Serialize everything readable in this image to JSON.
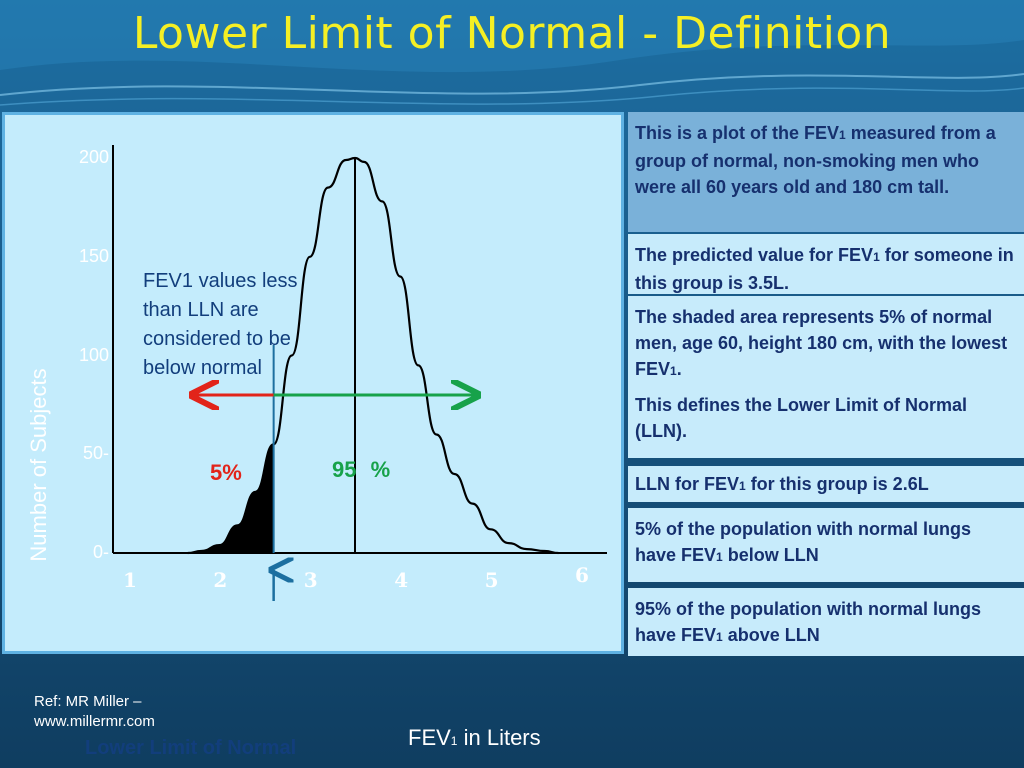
{
  "slide": {
    "title": "Lower Limit of Normal - Definition",
    "reference_line1": "Ref: MR Miller –",
    "reference_line2": "www.millermr.com"
  },
  "annotations": {
    "note": "FEV1 values less than LLN are considered to be below normal",
    "pct_left": "5%",
    "pct_right": "95  %",
    "lln_label": "Lower Limit of Normal",
    "xlabel_main": "FEV",
    "xlabel_sub": "1",
    "xlabel_rest": " in Liters",
    "ylabel": "Number of Subjects"
  },
  "sidebar": {
    "box1_a": "This is a plot of the FEV",
    "box1_sub": "1",
    "box1_b": " measured from a group of normal, non-smoking men who were all 60 years old and 180 cm tall.",
    "box2_a": "The predicted value for FEV",
    "box2_sub": "1",
    "box2_b": " for someone in this group is 3.5L.",
    "box3_a": "The shaded area represents 5% of normal men, age 60, height 180 cm, with the lowest FEV",
    "box3_sub": "1",
    "box3_b": ".",
    "box3_p2": "This defines the Lower Limit of Normal (LLN).",
    "box4_a": "LLN for FEV",
    "box4_sub": "1",
    "box4_b": " for this group is 2.6L",
    "box5_a": "5% of the population with normal lungs have FEV",
    "box5_sub": "1",
    "box5_b": " below LLN",
    "box6_a": "95% of the population with normal lungs have FEV",
    "box6_sub": "1",
    "box6_b": " above LLN"
  },
  "colors": {
    "title": "#f5ef24",
    "panel": "#c4ecfc",
    "red_arrow": "#e2241a",
    "green_arrow": "#17a24a",
    "lln_line": "#1c6fa0"
  },
  "chart_data": {
    "type": "area",
    "xlabel": "FEV1 in Liters",
    "ylabel": "Number of Subjects",
    "xlim": [
      1,
      6
    ],
    "ylim": [
      0,
      200
    ],
    "x_ticks": [
      "1",
      "2",
      "3",
      "4",
      "5",
      "6"
    ],
    "y_ticks": [
      "0-",
      "50-",
      "100",
      "150",
      "200"
    ],
    "lln": 2.6,
    "predicted": 3.5,
    "shaded_below_lln_percent": 5,
    "above_lln_percent": 95,
    "series": [
      {
        "x": [
          1.65,
          1.8,
          2.0,
          2.2,
          2.4,
          2.6,
          2.8,
          3.0,
          3.2,
          3.4,
          3.5,
          3.6,
          3.8,
          4.0,
          4.2,
          4.4,
          4.6,
          4.8,
          5.0,
          5.2,
          5.4,
          5.6,
          5.75
        ],
        "y": [
          0,
          1,
          4,
          14,
          31,
          55,
          100,
          150,
          185,
          199,
          200,
          198,
          178,
          140,
          95,
          60,
          40,
          25,
          12,
          5,
          2,
          1,
          0
        ]
      }
    ]
  }
}
